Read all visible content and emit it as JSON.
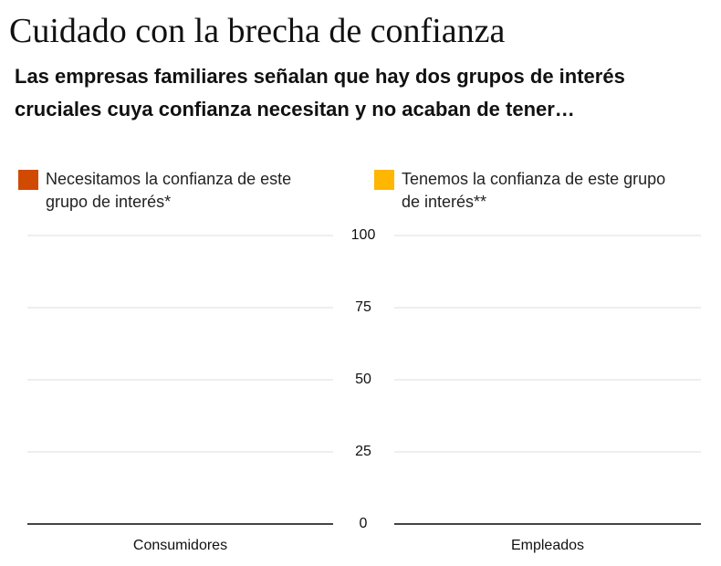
{
  "chart_data": {
    "type": "bar",
    "title": "Cuidado con la brecha de confianza",
    "subtitle": "Las empresas familiares señalan que hay dos grupos de interés cruciales cuya confianza necesitan y no acaban de tener…",
    "categories": [
      "Consumidores",
      "Empleados"
    ],
    "series": [
      {
        "name": "Necesitamos la confianza de este grupo de interés*",
        "color": "#d04a02",
        "values": [
          null,
          null
        ]
      },
      {
        "name": "Tenemos la confianza de este grupo de interés**",
        "color": "#ffb600",
        "values": [
          null,
          null
        ]
      }
    ],
    "ylim": [
      0,
      100
    ],
    "yticks": [
      0,
      25,
      50,
      75,
      100
    ],
    "grid": true
  }
}
